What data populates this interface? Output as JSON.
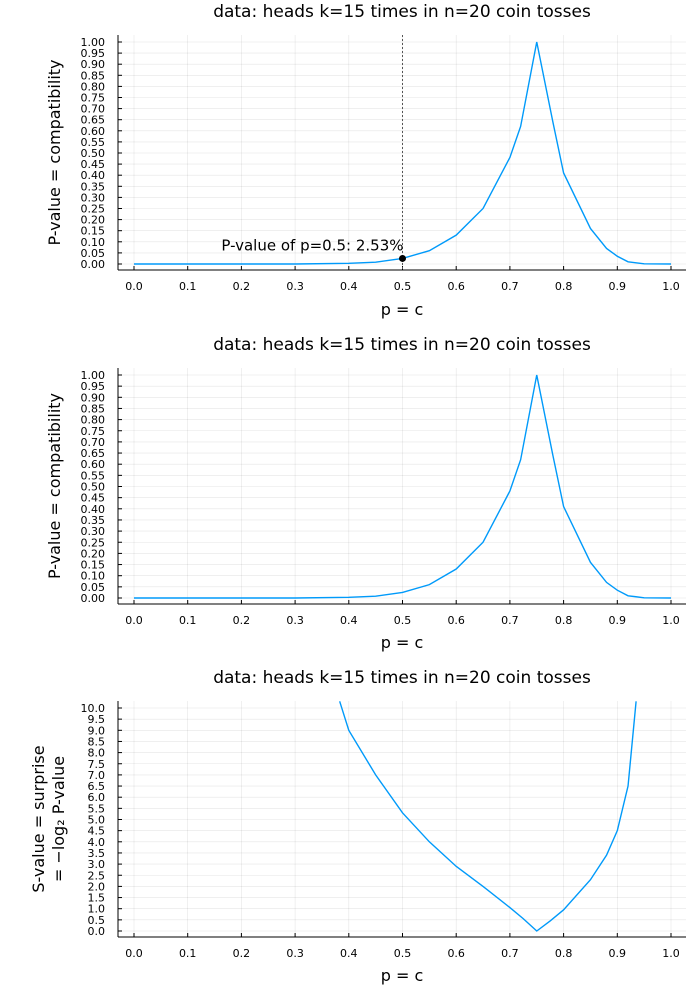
{
  "chart_data": [
    {
      "type": "line",
      "title": "data: heads k=15 times in n=20 coin tosses",
      "xlabel": "p = c",
      "ylabel": "P-value = compatibility",
      "ylabel2": "",
      "xlim": [
        0,
        1
      ],
      "ylim": [
        0,
        1
      ],
      "xticks": [
        "0.0",
        "0.1",
        "0.2",
        "0.3",
        "0.4",
        "0.5",
        "0.6",
        "0.7",
        "0.8",
        "0.9",
        "1.0"
      ],
      "yticks": [
        "0.00",
        "0.05",
        "0.10",
        "0.15",
        "0.20",
        "0.25",
        "0.30",
        "0.35",
        "0.40",
        "0.45",
        "0.50",
        "0.55",
        "0.60",
        "0.65",
        "0.70",
        "0.75",
        "0.80",
        "0.85",
        "0.90",
        "0.95",
        "1.00"
      ],
      "grid": true,
      "series": [
        {
          "x": [
            0.0,
            0.3,
            0.4,
            0.45,
            0.5,
            0.55,
            0.6,
            0.65,
            0.7,
            0.72,
            0.75,
            0.78,
            0.8,
            0.85,
            0.88,
            0.9,
            0.92,
            0.95,
            1.0
          ],
          "y": [
            0.0,
            0.0,
            0.003,
            0.008,
            0.025,
            0.06,
            0.13,
            0.25,
            0.48,
            0.62,
            1.0,
            0.64,
            0.41,
            0.16,
            0.07,
            0.035,
            0.01,
            0.001,
            0.0
          ]
        }
      ],
      "vline": 0.5,
      "point": {
        "x": 0.5,
        "y": 0.025
      },
      "annotation": "P-value of p=0.5: 2.53%"
    },
    {
      "type": "line",
      "title": "data: heads k=15 times in n=20 coin tosses",
      "xlabel": "p = c",
      "ylabel": "P-value = compatibility",
      "ylabel2": "",
      "xlim": [
        0,
        1
      ],
      "ylim": [
        0,
        1
      ],
      "xticks": [
        "0.0",
        "0.1",
        "0.2",
        "0.3",
        "0.4",
        "0.5",
        "0.6",
        "0.7",
        "0.8",
        "0.9",
        "1.0"
      ],
      "yticks": [
        "0.00",
        "0.05",
        "0.10",
        "0.15",
        "0.20",
        "0.25",
        "0.30",
        "0.35",
        "0.40",
        "0.45",
        "0.50",
        "0.55",
        "0.60",
        "0.65",
        "0.70",
        "0.75",
        "0.80",
        "0.85",
        "0.90",
        "0.95",
        "1.00"
      ],
      "grid": true,
      "series": [
        {
          "x": [
            0.0,
            0.3,
            0.4,
            0.45,
            0.5,
            0.55,
            0.6,
            0.65,
            0.7,
            0.72,
            0.75,
            0.78,
            0.8,
            0.85,
            0.88,
            0.9,
            0.92,
            0.95,
            1.0
          ],
          "y": [
            0.0,
            0.0,
            0.003,
            0.008,
            0.025,
            0.06,
            0.13,
            0.25,
            0.48,
            0.62,
            1.0,
            0.64,
            0.41,
            0.16,
            0.07,
            0.035,
            0.01,
            0.001,
            0.0
          ]
        }
      ]
    },
    {
      "type": "line",
      "title": "data: heads k=15 times in n=20 coin tosses",
      "xlabel": "p = c",
      "ylabel": "S-value = surprise",
      "ylabel2": "= −log₂ P-value",
      "xlim": [
        0,
        1
      ],
      "ylim": [
        0,
        10
      ],
      "xticks": [
        "0.0",
        "0.1",
        "0.2",
        "0.3",
        "0.4",
        "0.5",
        "0.6",
        "0.7",
        "0.8",
        "0.9",
        "1.0"
      ],
      "yticks": [
        "0.0",
        "0.5",
        "1.0",
        "1.5",
        "2.0",
        "2.5",
        "3.0",
        "3.5",
        "4.0",
        "4.5",
        "5.0",
        "5.5",
        "6.0",
        "6.5",
        "7.0",
        "7.5",
        "8.0",
        "8.5",
        "9.0",
        "9.5",
        "10.0"
      ],
      "grid": true,
      "series": [
        {
          "x": [
            0.383,
            0.4,
            0.45,
            0.5,
            0.55,
            0.6,
            0.65,
            0.7,
            0.725,
            0.75,
            0.775,
            0.8,
            0.85,
            0.88,
            0.9,
            0.92,
            0.935
          ],
          "y": [
            10.3,
            9.0,
            7.0,
            5.3,
            4.0,
            2.9,
            2.0,
            1.05,
            0.55,
            0.0,
            0.45,
            0.95,
            2.3,
            3.4,
            4.5,
            6.5,
            10.3
          ]
        }
      ]
    }
  ]
}
